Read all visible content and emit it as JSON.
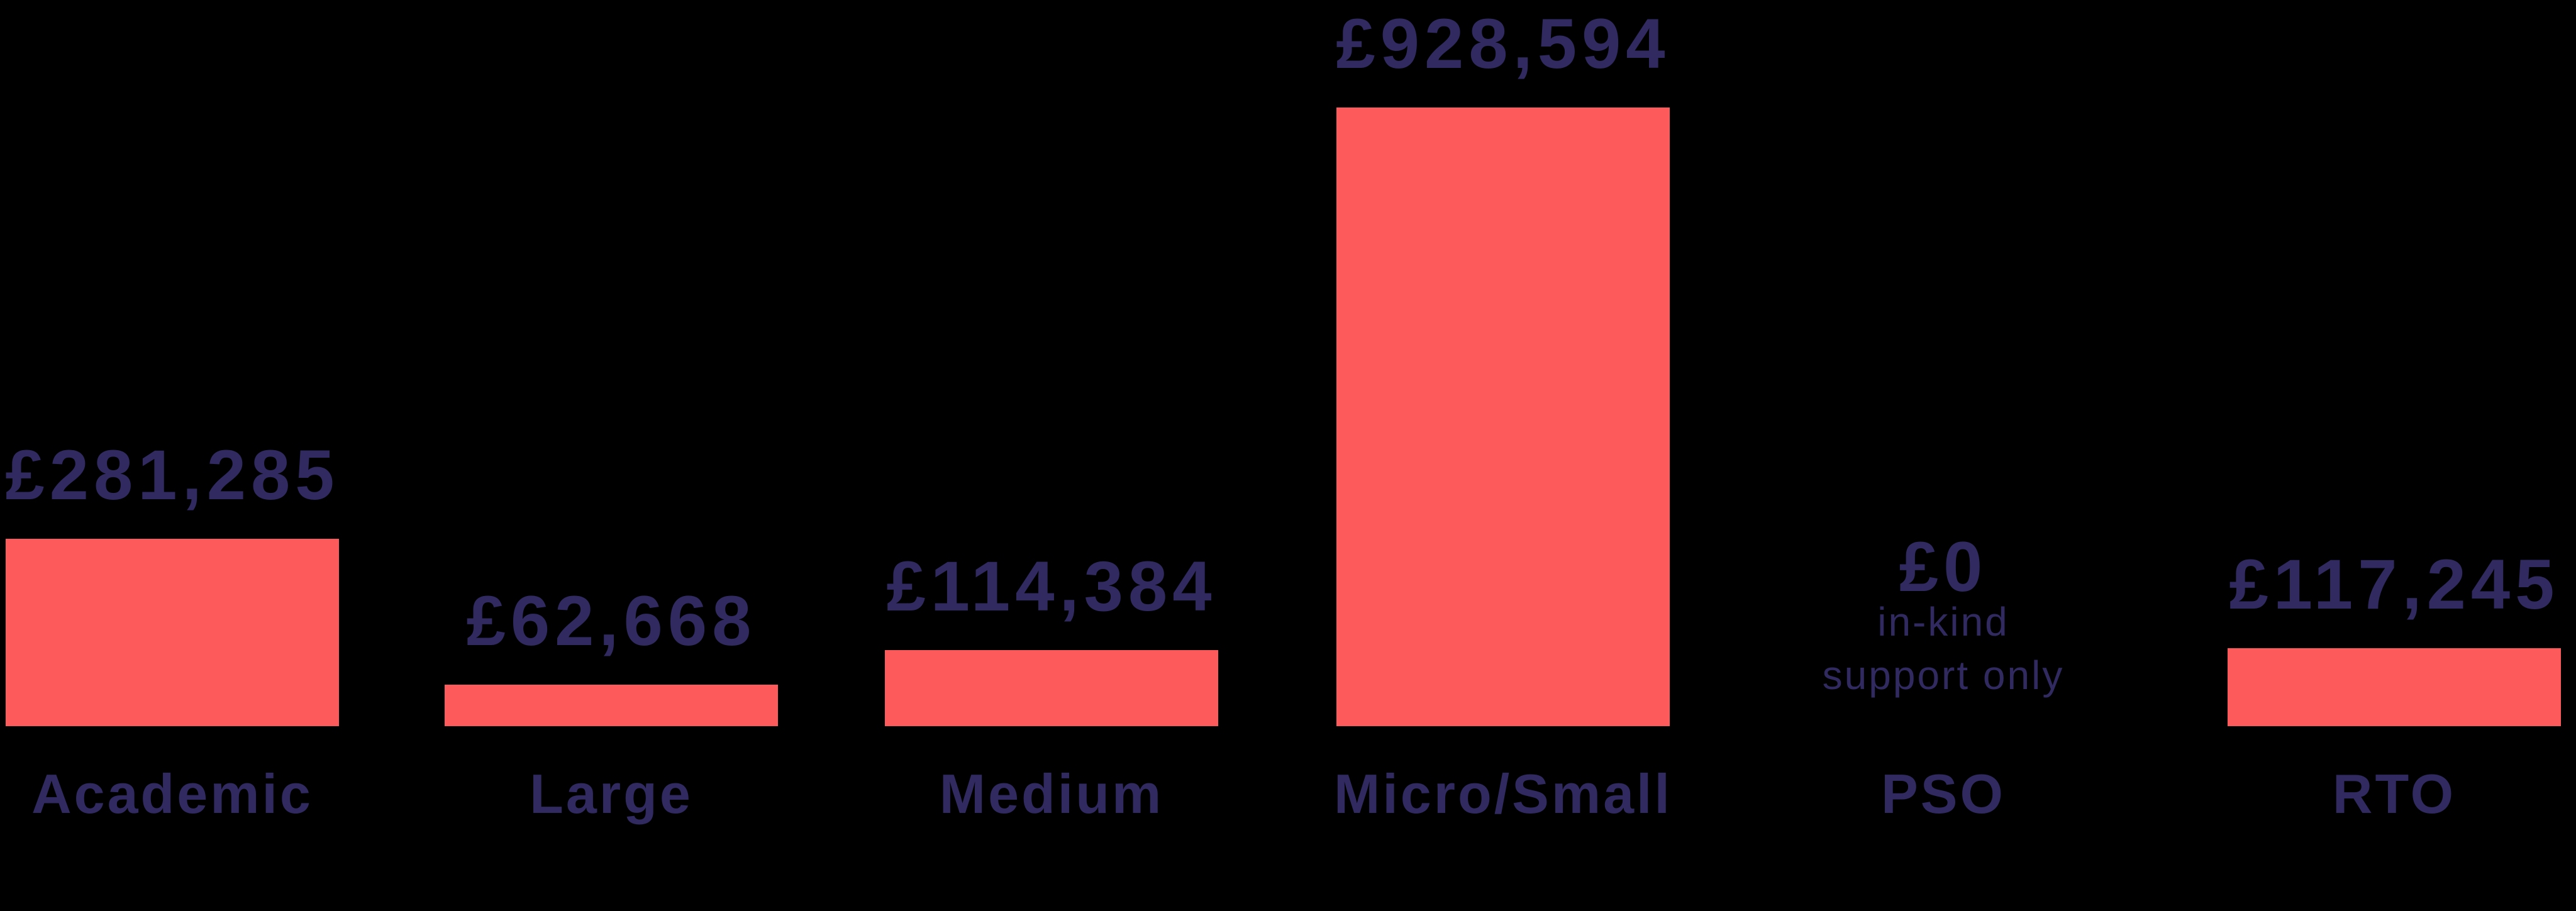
{
  "colors": {
    "background": "#000000",
    "bar": "#FC5A5B",
    "text": "#302A60"
  },
  "chart_data": {
    "type": "bar",
    "categories": [
      "Academic",
      "Large",
      "Medium",
      "Micro/Small",
      "PSO",
      "RTO"
    ],
    "values": [
      281285,
      62668,
      114384,
      928594,
      0,
      117245
    ],
    "currency_symbol": "£",
    "grid": false,
    "axes_visible": false,
    "legend": false,
    "bars": [
      {
        "category": "Academic",
        "value": 281285,
        "value_label": "£281,285"
      },
      {
        "category": "Large",
        "value": 62668,
        "value_label": "£62,668"
      },
      {
        "category": "Medium",
        "value": 114384,
        "value_label": "£114,384"
      },
      {
        "category": "Micro/Small",
        "value": 928594,
        "value_label": "£928,594"
      },
      {
        "category": "PSO",
        "value": 0,
        "value_label": "£0",
        "note_lines": [
          "in-kind",
          "support only"
        ]
      },
      {
        "category": "RTO",
        "value": 117245,
        "value_label": "£117,245"
      }
    ]
  }
}
